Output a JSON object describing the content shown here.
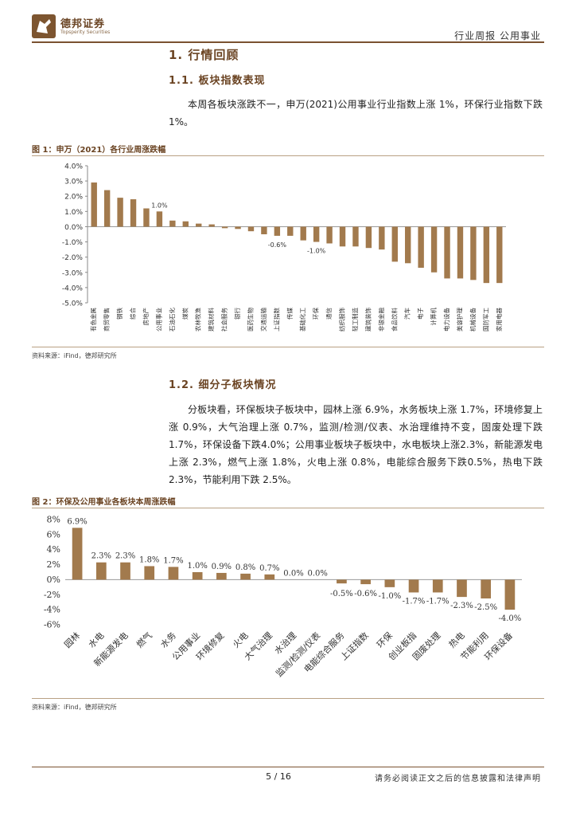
{
  "header": {
    "brand_name": "德邦证券",
    "brand_en": "Topsperity Securities",
    "report_type": "行业周报  公用事业"
  },
  "section1": {
    "title": "1. 行情回顾",
    "sub1_title": "1.1. 板块指数表现",
    "sub1_text": "本周各板块涨跌不一，申万(2021)公用事业行业指数上涨 1%，环保行业指数下跌 1%。",
    "sub2_title": "1.2. 细分子板块情况",
    "sub2_text": "分板块看，环保板块子板块中，园林上涨 6.9%，水务板块上涨 1.7%，环境修复上涨 0.9%，大气治理上涨 0.7%，监测/检测/仪表、水治理维持不变，固废处理下跌1.7%，环保设备下跌4.0%；公用事业板块子板块中，水电板块上涨2.3%，新能源发电上涨 2.3%，燃气上涨 1.8%，火电上涨 0.8%，电能综合服务下跌0.5%，热电下跌 2.3%，节能利用下跌 2.5%。"
  },
  "figure1": {
    "caption": "图 1：申万（2021）各行业周涨跌幅",
    "source": "资料来源：iFind，德邦研究所"
  },
  "figure2": {
    "caption": "图 2：环保及公用事业各板块本周涨跌幅",
    "source": "资料来源：iFind，德邦研究所"
  },
  "footer": {
    "page": "5 / 16",
    "disclaimer": "请务必阅读正文之后的信息披露和法律声明"
  },
  "chart_data": [
    {
      "type": "bar",
      "title": "图 1：申万（2021）各行业周涨跌幅",
      "categories": [
        "有色金属",
        "商贸零售",
        "钢铁",
        "综合",
        "房地产",
        "公用事业",
        "石油石化",
        "煤炭",
        "农林牧渔",
        "建筑材料",
        "社会服务",
        "银行",
        "医药生物",
        "交通运输",
        "上证指数",
        "传媒",
        "基础化工",
        "环保",
        "通信",
        "纺织服饰",
        "轻工制造",
        "建筑装饰",
        "非银金融",
        "食品饮料",
        "汽车",
        "电子",
        "计算机",
        "电力设备",
        "美容护理",
        "机械设备",
        "国防军工",
        "家用电器"
      ],
      "values": [
        2.9,
        2.4,
        1.9,
        1.8,
        1.2,
        1.0,
        0.4,
        0.35,
        0.2,
        0.15,
        -0.1,
        -0.15,
        -0.3,
        -0.5,
        -0.6,
        -0.6,
        -0.9,
        -1.0,
        -1.1,
        -1.3,
        -1.3,
        -1.4,
        -1.5,
        -2.3,
        -2.4,
        -2.7,
        -3.0,
        -3.4,
        -3.4,
        -3.5,
        -3.7,
        -3.7
      ],
      "data_labels": {
        "5": "1.0%",
        "14": "-0.6%",
        "17": "-1.0%"
      },
      "yticks": [
        "4.0%",
        "3.0%",
        "2.0%",
        "1.0%",
        "0.0%",
        "-1.0%",
        "-2.0%",
        "-3.0%",
        "-4.0%",
        "-5.0%"
      ],
      "ylim": [
        -5,
        4
      ],
      "bar_color": "#a27a4d",
      "grid": false,
      "legend": "none"
    },
    {
      "type": "bar",
      "title": "图 2：环保及公用事业各板块本周涨跌幅",
      "categories": [
        "园林",
        "水电",
        "新能源发电",
        "燃气",
        "水务",
        "公用事业",
        "环境修复",
        "火电",
        "大气治理",
        "水治理",
        "监测/检测/仪表",
        "电能综合服务",
        "上证指数",
        "环保",
        "创业板指",
        "固废处理",
        "热电",
        "节能利用",
        "环保设备"
      ],
      "values": [
        6.9,
        2.3,
        2.3,
        1.8,
        1.7,
        1.0,
        0.9,
        0.8,
        0.7,
        0.0,
        0.0,
        -0.5,
        -0.6,
        -1.0,
        -1.7,
        -1.7,
        -2.3,
        -2.5,
        -4.0
      ],
      "data_labels": [
        "6.9%",
        "2.3%",
        "2.3%",
        "1.8%",
        "1.7%",
        "1.0%",
        "0.9%",
        "0.8%",
        "0.7%",
        "0.0%",
        "0.0%",
        "-0.5%",
        "-0.6%",
        "-1.0%",
        "-1.7%",
        "-1.7%",
        "-2.3%",
        "-2.5%",
        "-4.0%"
      ],
      "yticks": [
        "8%",
        "6%",
        "4%",
        "2%",
        "0%",
        "-2%",
        "-4%",
        "-6%"
      ],
      "ylim": [
        -6,
        8
      ],
      "bar_color": "#a27a4d",
      "grid": false,
      "legend": "none"
    }
  ]
}
